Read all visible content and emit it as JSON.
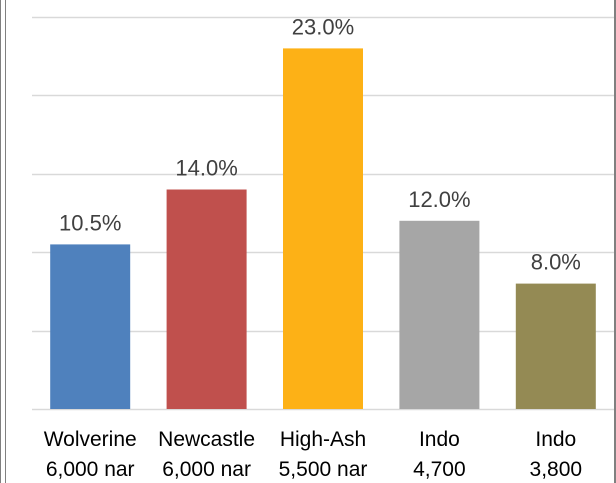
{
  "chart_data": {
    "type": "bar",
    "categories": [
      [
        "Wolverine",
        "6,000 nar"
      ],
      [
        "Newcastle",
        "6,000 nar"
      ],
      [
        "High-Ash",
        "5,500 nar"
      ],
      [
        "Indo",
        "4,700"
      ],
      [
        "Indo",
        "3,800"
      ]
    ],
    "values": [
      10.5,
      14.0,
      23.0,
      12.0,
      8.0
    ],
    "data_labels": [
      "10.5%",
      "14.0%",
      "23.0%",
      "12.0%",
      "8.0%"
    ],
    "colors": [
      "#4f81bd",
      "#c0504d",
      "#fdb116",
      "#a6a6a6",
      "#948a54"
    ],
    "ylim": [
      0,
      25
    ],
    "grid": true,
    "legend": "none"
  }
}
